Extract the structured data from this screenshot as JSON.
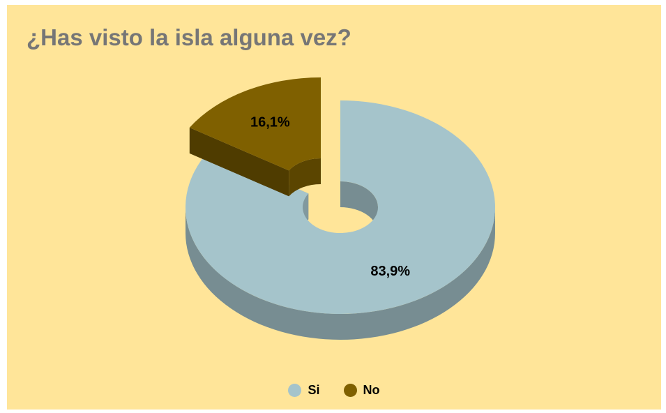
{
  "chart_data": {
    "type": "pie",
    "variant": "3d-donut-exploded",
    "title": "¿Has visto la isla alguna vez?",
    "categories": [
      "Si",
      "No"
    ],
    "values": [
      83.9,
      16.1
    ],
    "data_labels": [
      "83,9%",
      "16,1%"
    ],
    "colors": [
      "#a5c4cb",
      "#7f6000"
    ],
    "legend": {
      "position": "bottom",
      "items": [
        {
          "label": "Si",
          "color": "#a5c4cb"
        },
        {
          "label": "No",
          "color": "#7f6000"
        }
      ]
    },
    "background_color": "#ffe599"
  }
}
